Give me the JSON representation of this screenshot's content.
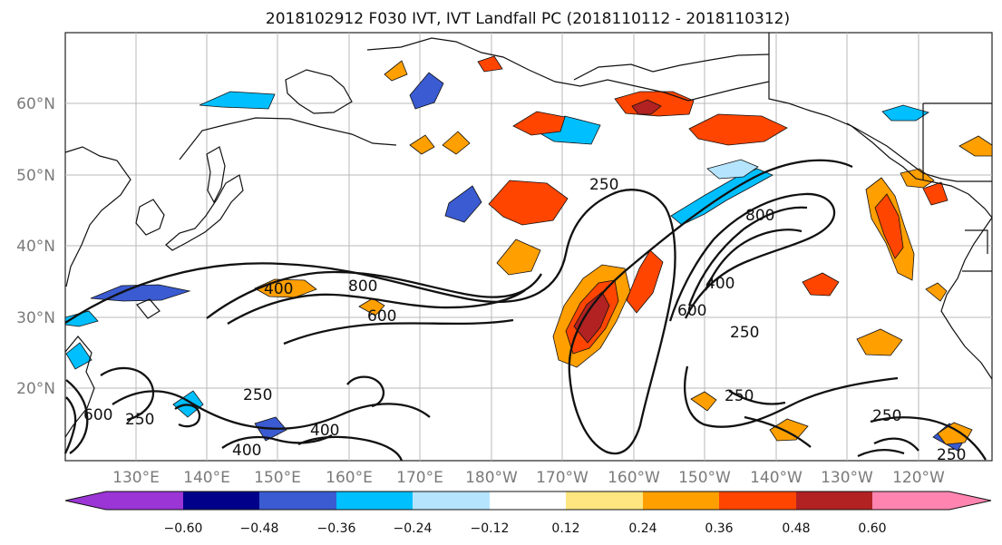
{
  "title": "2018102912 F030 IVT, IVT Landfall PC (2018110112 - 2018110312)",
  "map": {
    "lat_labels": [
      "60°N",
      "50°N",
      "40°N",
      "30°N",
      "20°N"
    ],
    "lon_labels": [
      "130°E",
      "140°E",
      "150°E",
      "160°E",
      "170°E",
      "180°W",
      "170°W",
      "160°W",
      "150°W",
      "140°W",
      "130°W",
      "120°W"
    ],
    "contour_labels": [
      "250",
      "800",
      "400",
      "800",
      "600",
      "400",
      "600",
      "250",
      "250",
      "250",
      "400",
      "400",
      "250",
      "250",
      "600",
      "250"
    ]
  },
  "colorbar": {
    "tick_labels": [
      "−0.60",
      "−0.48",
      "−0.36",
      "−0.24",
      "−0.12",
      "0.12",
      "0.24",
      "0.36",
      "0.48",
      "0.60"
    ],
    "colors": [
      "#9b35d6",
      "#00008b",
      "#3a5bd1",
      "#00bfff",
      "#b5e4ff",
      "#ffffff",
      "#ffe680",
      "#ff9f00",
      "#ff4500",
      "#b22222",
      "#ff85b0"
    ],
    "extend": "both"
  },
  "legend_placement": "bottom"
}
